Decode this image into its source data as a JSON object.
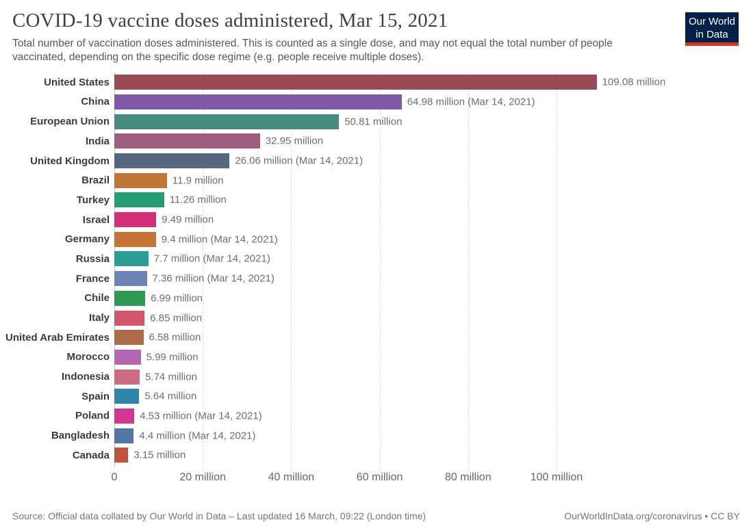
{
  "header": {
    "title": "COVID-19 vaccine doses administered, Mar 15, 2021",
    "subtitle": "Total number of vaccination doses administered. This is counted as a single dose, and may not equal the total number of people vaccinated, depending on the specific dose regime (e.g. people receive multiple doses).",
    "logo": {
      "line1": "Our World",
      "line2": "in Data",
      "bg_color": "#002147",
      "accent_color": "#e22d26"
    }
  },
  "chart_data": {
    "type": "bar",
    "orientation": "horizontal",
    "title": "COVID-19 vaccine doses administered, Mar 15, 2021",
    "xlabel": "",
    "ylabel": "",
    "unit": "million doses",
    "xlim": [
      0,
      113
    ],
    "grid": "dashed-vertical",
    "ticks": [
      {
        "value": 0,
        "label": "0"
      },
      {
        "value": 20,
        "label": "20 million"
      },
      {
        "value": 40,
        "label": "40 million"
      },
      {
        "value": 60,
        "label": "60 million"
      },
      {
        "value": 80,
        "label": "80 million"
      },
      {
        "value": 100,
        "label": "100 million"
      }
    ],
    "series": [
      {
        "name": "United States",
        "value": 109.08,
        "label": "109.08 million",
        "color": "#9b4a53"
      },
      {
        "name": "China",
        "value": 64.98,
        "label": "64.98 million (Mar 14, 2021)",
        "color": "#8158a8"
      },
      {
        "name": "European Union",
        "value": 50.81,
        "label": "50.81 million",
        "color": "#488b80"
      },
      {
        "name": "India",
        "value": 32.95,
        "label": "32.95 million",
        "color": "#a05c7d"
      },
      {
        "name": "United Kingdom",
        "value": 26.06,
        "label": "26.06 million (Mar 14, 2021)",
        "color": "#55687f"
      },
      {
        "name": "Brazil",
        "value": 11.9,
        "label": "11.9 million",
        "color": "#bf7636"
      },
      {
        "name": "Turkey",
        "value": 11.26,
        "label": "11.26 million",
        "color": "#249e74"
      },
      {
        "name": "Israel",
        "value": 9.49,
        "label": "9.49 million",
        "color": "#d42e78"
      },
      {
        "name": "Germany",
        "value": 9.4,
        "label": "9.4 million (Mar 14, 2021)",
        "color": "#c87336"
      },
      {
        "name": "Russia",
        "value": 7.7,
        "label": "7.7 million (Mar 14, 2021)",
        "color": "#2b9d92"
      },
      {
        "name": "France",
        "value": 7.36,
        "label": "7.36 million (Mar 14, 2021)",
        "color": "#6d84b8"
      },
      {
        "name": "Chile",
        "value": 6.99,
        "label": "6.99 million",
        "color": "#2e9950"
      },
      {
        "name": "Italy",
        "value": 6.85,
        "label": "6.85 million",
        "color": "#d4566b"
      },
      {
        "name": "United Arab Emirates",
        "value": 6.58,
        "label": "6.58 million",
        "color": "#ad6b48"
      },
      {
        "name": "Morocco",
        "value": 5.99,
        "label": "5.99 million",
        "color": "#b266b5"
      },
      {
        "name": "Indonesia",
        "value": 5.74,
        "label": "5.74 million",
        "color": "#cc6c80"
      },
      {
        "name": "Spain",
        "value": 5.64,
        "label": "5.64 million",
        "color": "#2f85a8"
      },
      {
        "name": "Poland",
        "value": 4.53,
        "label": "4.53 million (Mar 14, 2021)",
        "color": "#d3368f"
      },
      {
        "name": "Bangladesh",
        "value": 4.4,
        "label": "4.4 million (Mar 14, 2021)",
        "color": "#5378a7"
      },
      {
        "name": "Canada",
        "value": 3.15,
        "label": "3.15 million",
        "color": "#c05339"
      }
    ]
  },
  "footer": {
    "source": "Source: Official data collated by Our World in Data – Last updated 16 March, 09:22 (London time)",
    "link": "OurWorldInData.org/coronavirus • CC BY"
  }
}
